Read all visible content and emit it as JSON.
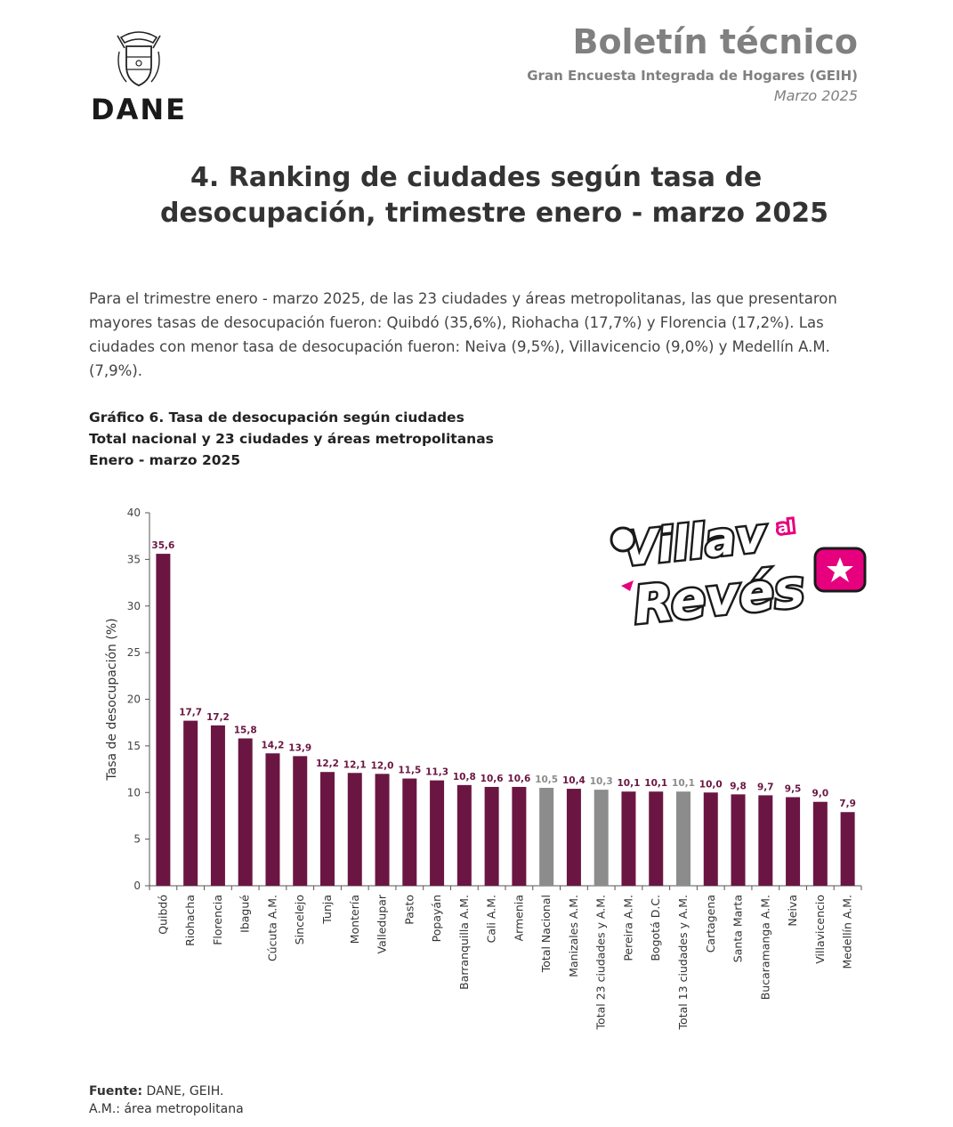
{
  "header": {
    "logo_text": "DANE",
    "title": "Boletín técnico",
    "subtitle": "Gran Encuesta Integrada de Hogares (GEIH)",
    "date": "Marzo 2025"
  },
  "section": {
    "number": "4.",
    "title_line1": "Ranking de ciudades según tasa de",
    "title_line2": "desocupación, trimestre enero - marzo 2025"
  },
  "intro": "Para el trimestre enero - marzo 2025, de las 23 ciudades y áreas metropolitanas, las que presentaron mayores tasas de desocupación fueron: Quibdó (35,6%), Riohacha (17,7%) y Florencia (17,2%). Las ciudades con menor tasa de desocupación fueron: Neiva (9,5%), Villavicencio (9,0%) y Medellín A.M. (7,9%).",
  "graph_title": {
    "line1": "Gráfico 6. Tasa de desocupación según ciudades",
    "line2": "Total nacional y 23 ciudades y áreas metropolitanas",
    "line3": "Enero - marzo 2025"
  },
  "chart_data": {
    "type": "bar",
    "ylabel": "Tasa de desocupación (%)",
    "ylim": [
      0,
      40
    ],
    "yticks": [
      0,
      5,
      10,
      15,
      20,
      25,
      30,
      35,
      40
    ],
    "grid": false,
    "categories": [
      "Quibdó",
      "Riohacha",
      "Florencia",
      "Ibagué",
      "Cúcuta A.M.",
      "Sincelejo",
      "Tunja",
      "Montería",
      "Valledupar",
      "Pasto",
      "Popayán",
      "Barranquilla A.M.",
      "Cali A.M.",
      "Armenia",
      "Total Nacional",
      "Manizales A.M.",
      "Total 23 ciudades y A.M.",
      "Pereira A.M.",
      "Bogotá D.C.",
      "Total 13 ciudades y A.M.",
      "Cartagena",
      "Santa Marta",
      "Bucaramanga A.M.",
      "Neiva",
      "Villavicencio",
      "Medellín A.M."
    ],
    "values": [
      35.6,
      17.7,
      17.2,
      15.8,
      14.2,
      13.9,
      12.2,
      12.1,
      12.0,
      11.5,
      11.3,
      10.8,
      10.6,
      10.6,
      10.5,
      10.4,
      10.3,
      10.1,
      10.1,
      10.1,
      10.0,
      9.8,
      9.7,
      9.5,
      9.0,
      7.9
    ],
    "labels": [
      "35,6",
      "17,7",
      "17,2",
      "15,8",
      "14,2",
      "13,9",
      "12,2",
      "12,1",
      "12,0",
      "11,5",
      "11,3",
      "10,8",
      "10,6",
      "10,6",
      "10,5",
      "10,4",
      "10,3",
      "10,1",
      "10,1",
      "10,1",
      "10,0",
      "9,8",
      "9,7",
      "9,5",
      "9,0",
      "7,9"
    ],
    "highlight": [
      false,
      false,
      false,
      false,
      false,
      false,
      false,
      false,
      false,
      false,
      false,
      false,
      false,
      false,
      true,
      false,
      true,
      false,
      false,
      true,
      false,
      false,
      false,
      false,
      false,
      false
    ],
    "colors": {
      "bar": "#6b1642",
      "total": "#8c8c8c",
      "label": "#6b1642",
      "total_label": "#8c8c8c"
    }
  },
  "footer": {
    "source_label": "Fuente:",
    "source_text": " DANE, GEIH.",
    "note": "A.M.: área metropolitana"
  },
  "watermark": {
    "line1": "Villav",
    "small": "al",
    "line2": "Revés"
  }
}
